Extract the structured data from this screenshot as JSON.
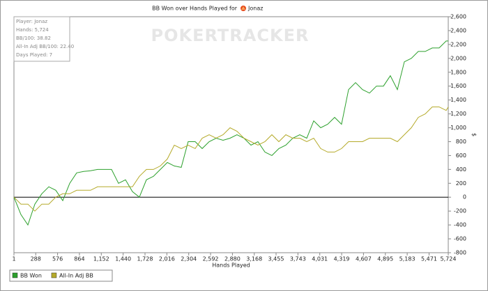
{
  "chart_data": {
    "type": "line",
    "title": "BB Won over Hands Played for",
    "player": "Jonaz",
    "watermark": "POKERTRACKER",
    "info": [
      "Player: Jonaz",
      "Hands: 5,724",
      "BB/100: 38.82",
      "All-In Adj BB/100: 22.40",
      "Days Played: 7"
    ],
    "x_label": "Hands Played",
    "y_label": "$",
    "x": [
      1,
      93,
      185,
      277,
      368,
      460,
      552,
      644,
      736,
      828,
      920,
      1011,
      1103,
      1195,
      1287,
      1379,
      1471,
      1563,
      1654,
      1746,
      1838,
      1930,
      2022,
      2114,
      2206,
      2297,
      2389,
      2481,
      2573,
      2665,
      2757,
      2849,
      2940,
      3032,
      3124,
      3216,
      3308,
      3400,
      3492,
      3584,
      3675,
      3767,
      3859,
      3951,
      4043,
      4135,
      4227,
      4318,
      4410,
      4502,
      4594,
      4686,
      4778,
      4870,
      4961,
      5053,
      5145,
      5237,
      5329,
      5421,
      5513,
      5604,
      5696,
      5724
    ],
    "series": [
      {
        "name": "BB Won",
        "color": "#2ca02c",
        "values": [
          0,
          -250,
          -400,
          -100,
          50,
          150,
          100,
          -50,
          200,
          350,
          370,
          380,
          400,
          400,
          400,
          200,
          250,
          80,
          0,
          250,
          300,
          400,
          500,
          450,
          430,
          800,
          800,
          700,
          800,
          850,
          820,
          850,
          900,
          850,
          750,
          800,
          650,
          600,
          700,
          750,
          850,
          900,
          850,
          1100,
          1000,
          1050,
          1150,
          1050,
          1550,
          1650,
          1550,
          1500,
          1600,
          1600,
          1750,
          1550,
          1950,
          2000,
          2100,
          2100,
          2150,
          2150,
          2250,
          2250
        ]
      },
      {
        "name": "All-In Adj BB",
        "color": "#b5aa2a",
        "values": [
          0,
          -100,
          -100,
          -200,
          -100,
          -100,
          0,
          50,
          50,
          100,
          100,
          100,
          150,
          150,
          150,
          150,
          150,
          150,
          300,
          400,
          400,
          450,
          550,
          750,
          700,
          750,
          700,
          850,
          900,
          850,
          900,
          1000,
          950,
          850,
          800,
          750,
          800,
          900,
          800,
          900,
          850,
          850,
          800,
          850,
          700,
          650,
          650,
          700,
          800,
          800,
          800,
          850,
          850,
          850,
          850,
          800,
          900,
          1000,
          1150,
          1200,
          1300,
          1300,
          1250,
          1300
        ]
      }
    ],
    "xlim": [
      1,
      5724
    ],
    "xticks": [
      1,
      288,
      576,
      864,
      {
        "value": 1152,
        "label": "1,152"
      },
      {
        "value": 1440,
        "label": "1,440"
      },
      {
        "value": 1728,
        "label": "1,728"
      },
      {
        "value": 2016,
        "label": "2,016"
      },
      {
        "value": 2304,
        "label": "2,304"
      },
      {
        "value": 2592,
        "label": "2,592"
      },
      {
        "value": 2880,
        "label": "2,880"
      },
      {
        "value": 3168,
        "label": "3,168"
      },
      {
        "value": 3455,
        "label": "3,455"
      },
      {
        "value": 3743,
        "label": "3,743"
      },
      {
        "value": 4031,
        "label": "4,031"
      },
      {
        "value": 4319,
        "label": "4,319"
      },
      {
        "value": 4607,
        "label": "4,607"
      },
      {
        "value": 4895,
        "label": "4,895"
      },
      {
        "value": 5183,
        "label": "5,183"
      },
      {
        "value": 5471,
        "label": "5,471"
      },
      {
        "value": 5724,
        "label": "5,724"
      }
    ],
    "ylim": [
      -800,
      2600
    ],
    "yticks": [
      -800,
      -600,
      -400,
      -200,
      0,
      200,
      400,
      600,
      800,
      {
        "value": 1000,
        "label": "1,000"
      },
      {
        "value": 1200,
        "label": "1,200"
      },
      {
        "value": 1400,
        "label": "1,400"
      },
      {
        "value": 1600,
        "label": "1,600"
      },
      {
        "value": 1800,
        "label": "1,800"
      },
      {
        "value": 2000,
        "label": "2,000"
      },
      {
        "value": 2200,
        "label": "2,200"
      },
      {
        "value": 2400,
        "label": "2,400"
      },
      {
        "value": 2600,
        "label": "2,600"
      }
    ],
    "legend": "bottom-left"
  }
}
